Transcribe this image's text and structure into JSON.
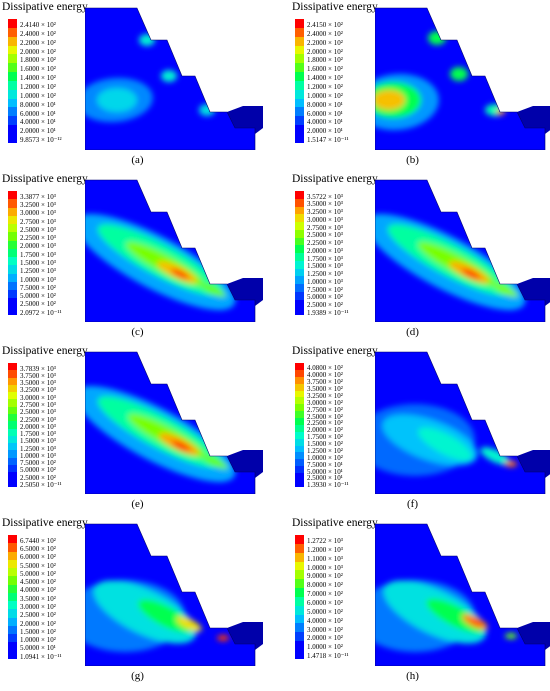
{
  "figure": {
    "panels": [
      {
        "id": "a",
        "caption": "(a)",
        "title": "Dissipative energy",
        "legend": [
          "2.4140 × 10²",
          "2.4000 × 10²",
          "2.2000 × 10²",
          "2.0000 × 10²",
          "1.8000 × 10²",
          "1.6000 × 10²",
          "1.4000 × 10²",
          "1.2000 × 10²",
          "1.0000 × 10²",
          "8.0000 × 10¹",
          "6.0000 × 10¹",
          "4.0000 × 10¹",
          "2.0000 × 10¹",
          "9.8573 × 10⁻¹²"
        ]
      },
      {
        "id": "b",
        "caption": "(b)",
        "title": "Dissipative energy",
        "legend": [
          "2.4150 × 10²",
          "2.4000 × 10²",
          "2.2000 × 10²",
          "2.0000 × 10²",
          "1.8000 × 10²",
          "1.6000 × 10²",
          "1.4000 × 10²",
          "1.2000 × 10²",
          "1.0000 × 10²",
          "8.0000 × 10¹",
          "6.0000 × 10¹",
          "4.0000 × 10¹",
          "2.0000 × 10¹",
          "1.5147 × 10⁻¹¹"
        ]
      },
      {
        "id": "c",
        "caption": "(c)",
        "title": "Dissipative energy",
        "legend": [
          "3.3877 × 10³",
          "3.2500 × 10³",
          "3.0000 × 10³",
          "2.7500 × 10³",
          "2.5000 × 10³",
          "2.2500 × 10³",
          "2.0000 × 10³",
          "1.7500 × 10³",
          "1.5000 × 10³",
          "1.2500 × 10³",
          "1.0000 × 10³",
          "7.5000 × 10²",
          "5.0000 × 10²",
          "2.5000 × 10²",
          "2.0972 × 10⁻¹¹"
        ]
      },
      {
        "id": "d",
        "caption": "(d)",
        "title": "Dissipative energy",
        "legend": [
          "3.5722 × 10³",
          "3.5000 × 10³",
          "3.2500 × 10³",
          "3.0000 × 10³",
          "2.7500 × 10³",
          "2.5000 × 10³",
          "2.2500 × 10³",
          "2.0000 × 10³",
          "1.7500 × 10³",
          "1.5000 × 10³",
          "1.2500 × 10³",
          "1.0000 × 10³",
          "7.5000 × 10²",
          "5.0000 × 10²",
          "2.5000 × 10²",
          "1.9389 × 10⁻¹¹"
        ]
      },
      {
        "id": "e",
        "caption": "(e)",
        "title": "Dissipative energy",
        "legend": [
          "3.7839 × 10³",
          "3.7500 × 10³",
          "3.5000 × 10³",
          "3.2500 × 10³",
          "3.0000 × 10³",
          "2.7500 × 10³",
          "2.5000 × 10³",
          "2.2500 × 10³",
          "2.0000 × 10³",
          "1.7500 × 10³",
          "1.5000 × 10³",
          "1.2500 × 10³",
          "1.0000 × 10³",
          "7.5000 × 10²",
          "5.0000 × 10²",
          "2.5000 × 10²",
          "2.5050 × 10⁻¹¹"
        ]
      },
      {
        "id": "f",
        "caption": "(f)",
        "title": "Dissipative energy",
        "legend": [
          "4.0800 × 10²",
          "4.0000 × 10²",
          "3.7500 × 10²",
          "3.5000 × 10²",
          "3.2500 × 10²",
          "3.0000 × 10²",
          "2.7500 × 10²",
          "2.5000 × 10²",
          "2.2500 × 10²",
          "2.0000 × 10²",
          "1.7500 × 10²",
          "1.5000 × 10²",
          "1.2500 × 10²",
          "1.0000 × 10²",
          "7.5000 × 10¹",
          "5.0000 × 10¹",
          "2.5000 × 10¹",
          "1.3930 × 10⁻¹¹"
        ]
      },
      {
        "id": "g",
        "caption": "(g)",
        "title": "Dissipative energy",
        "legend": [
          "6.7440 × 10²",
          "6.5000 × 10²",
          "6.0000 × 10²",
          "5.5000 × 10²",
          "5.0000 × 10²",
          "4.5000 × 10²",
          "4.0000 × 10²",
          "3.5000 × 10²",
          "3.0000 × 10²",
          "2.5000 × 10²",
          "2.0000 × 10²",
          "1.5000 × 10²",
          "1.0000 × 10²",
          "5.0000 × 10¹",
          "1.0941 × 10⁻¹¹"
        ]
      },
      {
        "id": "h",
        "caption": "(h)",
        "title": "Dissipative energy",
        "legend": [
          "1.2722 × 10³",
          "1.2000 × 10³",
          "1.1000 × 10³",
          "1.0000 × 10³",
          "9.0000 × 10²",
          "8.0000 × 10²",
          "7.0000 × 10²",
          "6.0000 × 10²",
          "5.0000 × 10²",
          "4.0000 × 10²",
          "3.0000 × 10²",
          "2.0000 × 10²",
          "1.0000 × 10²",
          "1.4718 × 10⁻¹¹"
        ]
      }
    ]
  }
}
